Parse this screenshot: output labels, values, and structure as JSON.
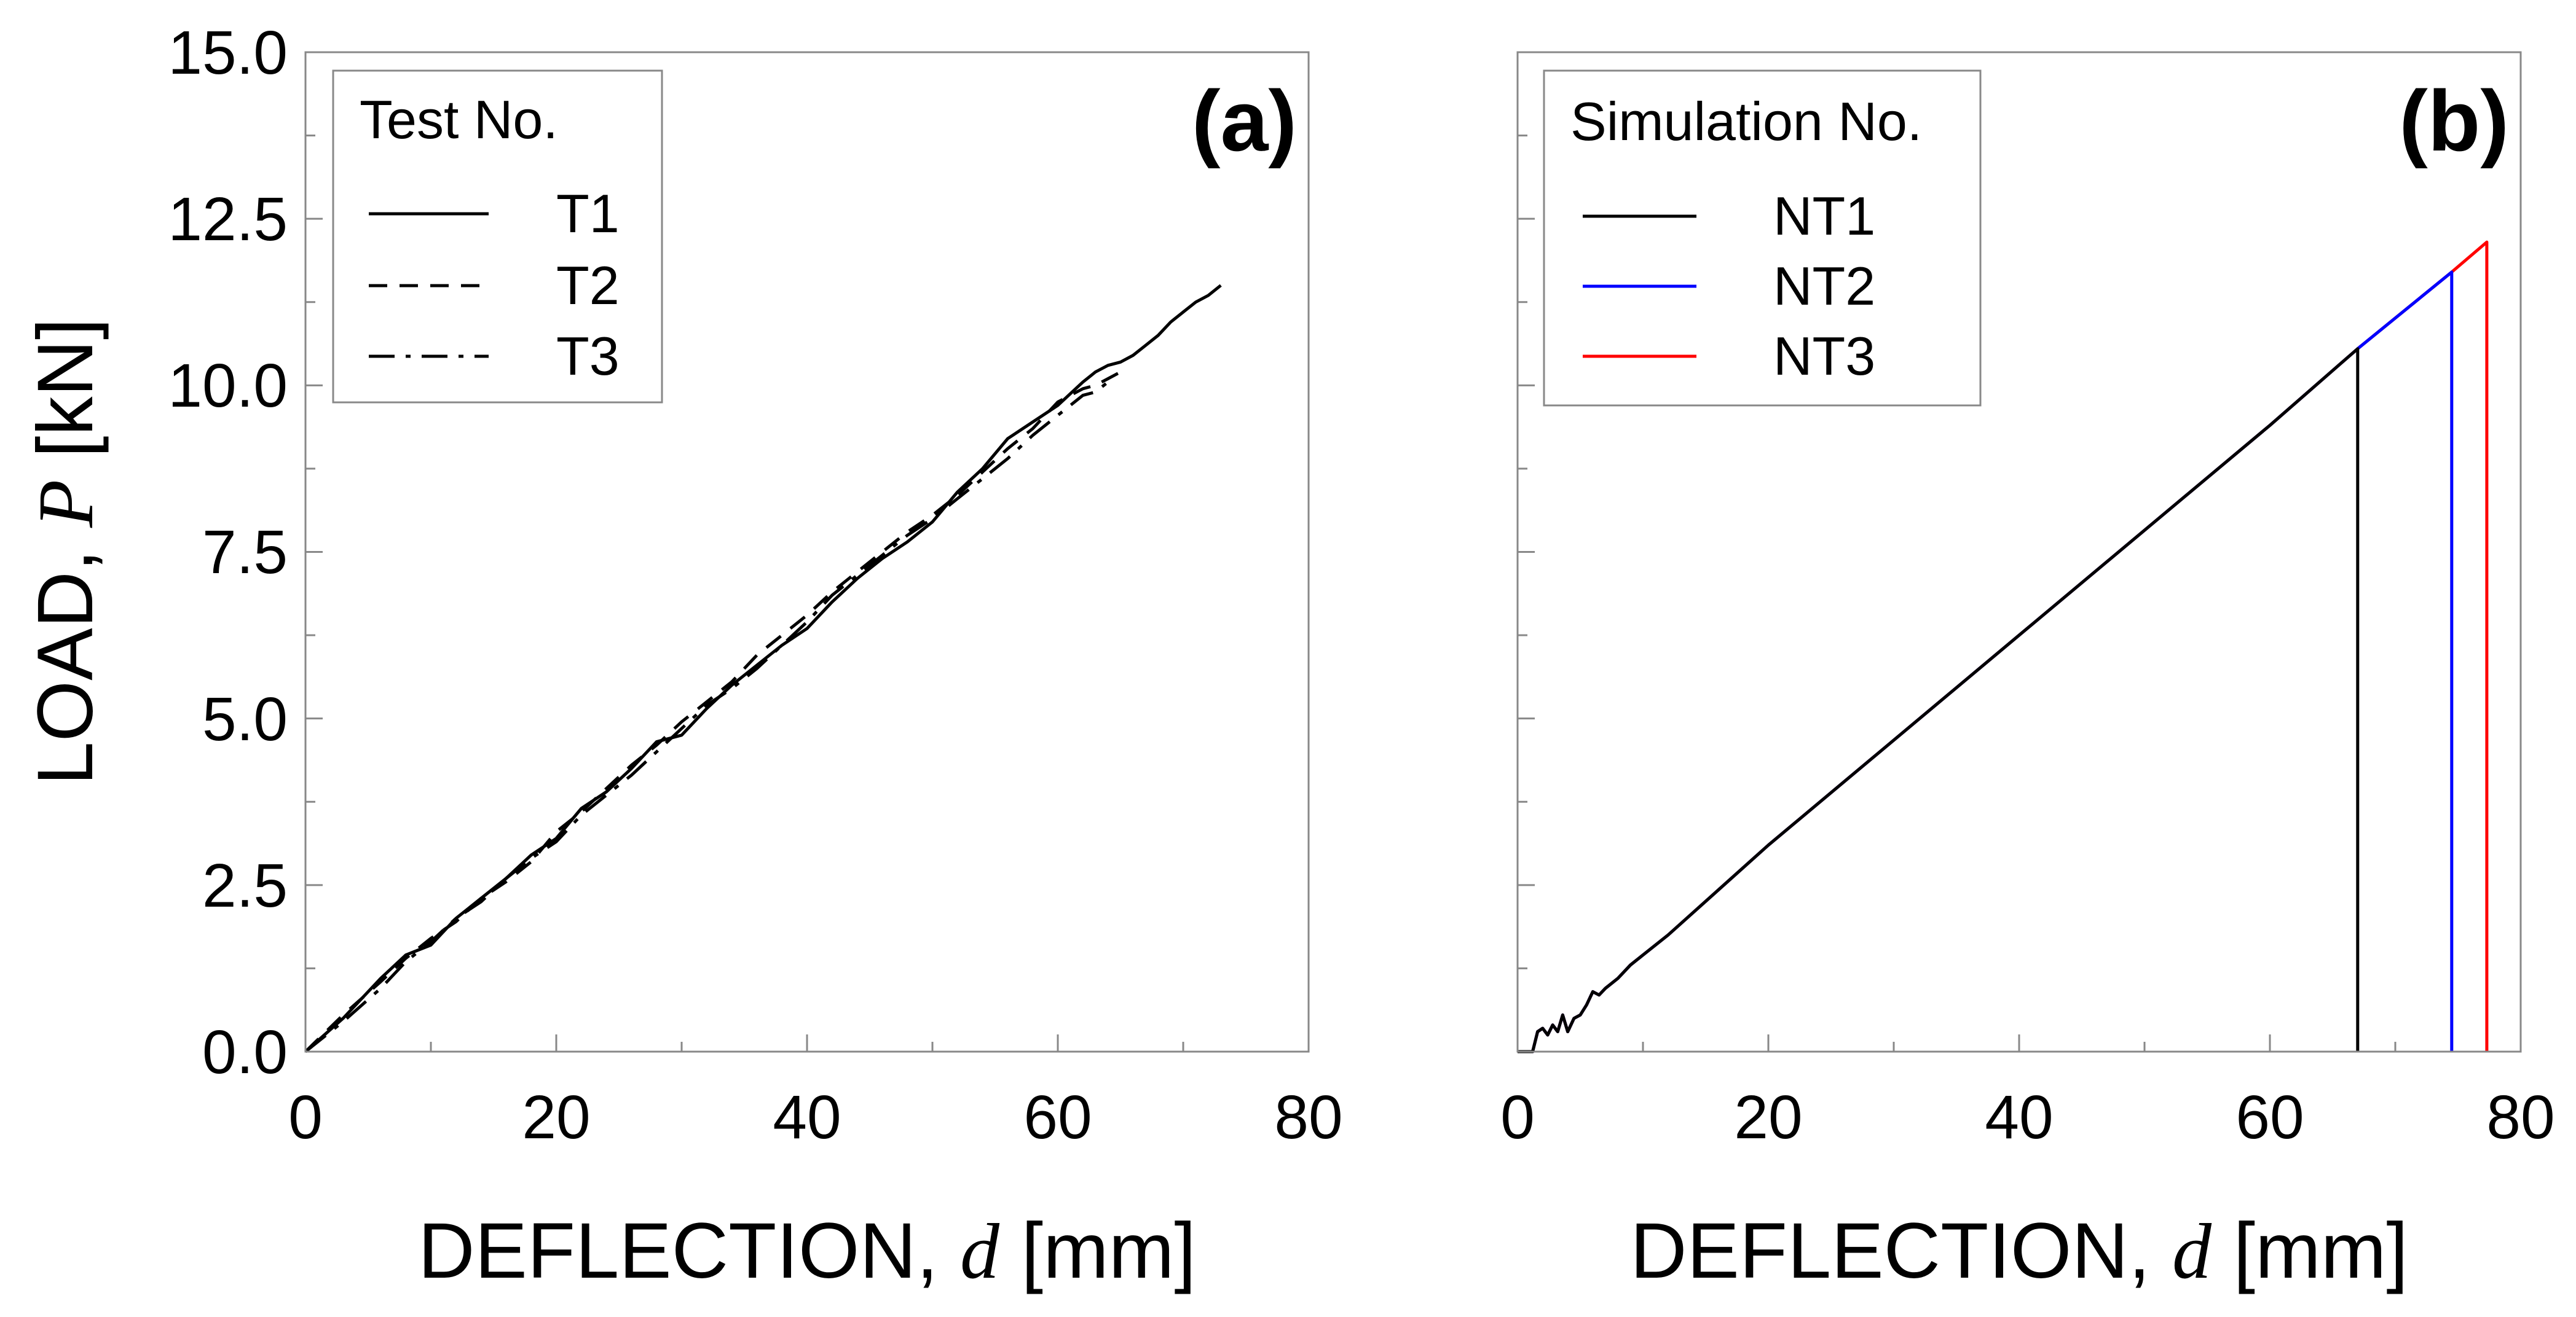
{
  "chart_data": [
    {
      "panel": "(a)",
      "type": "line",
      "xlabel_prefix": "DEFLECTION,",
      "xlabel_var": "d",
      "xlabel_unit": "[mm]",
      "ylabel_prefix": "LOAD,",
      "ylabel_var": "P",
      "ylabel_unit": "[kN]",
      "xlim": [
        0,
        80
      ],
      "ylim": [
        0,
        15
      ],
      "xticks": [
        0,
        20,
        40,
        60,
        80
      ],
      "yticks": [
        0.0,
        2.5,
        5.0,
        7.5,
        10.0,
        12.5,
        15.0
      ],
      "xtick_labels": [
        "0",
        "20",
        "40",
        "60",
        "80"
      ],
      "ytick_labels": [
        "0.0",
        "2.5",
        "5.0",
        "7.5",
        "10.0",
        "12.5",
        "15.0"
      ],
      "legend_title": "Test No.",
      "legend_position": "top-left",
      "series": [
        {
          "name": "T1",
          "color": "#000000",
          "dash": "solid",
          "x": [
            0,
            3,
            6,
            8,
            10,
            12,
            14,
            16,
            18,
            20,
            22,
            24,
            26,
            28,
            30,
            32,
            34,
            36,
            38,
            40,
            42,
            44,
            46,
            48,
            50,
            52,
            54,
            56,
            58,
            60,
            62,
            63,
            64,
            65,
            66,
            67,
            68,
            69,
            70,
            71,
            72,
            73
          ],
          "y": [
            0,
            0.5,
            1.1,
            1.45,
            1.6,
            2.0,
            2.3,
            2.6,
            2.95,
            3.2,
            3.65,
            3.9,
            4.25,
            4.65,
            4.75,
            5.15,
            5.5,
            5.8,
            6.1,
            6.35,
            6.75,
            7.1,
            7.4,
            7.65,
            7.95,
            8.4,
            8.75,
            9.2,
            9.45,
            9.7,
            10.05,
            10.2,
            10.3,
            10.35,
            10.45,
            10.6,
            10.75,
            10.95,
            11.1,
            11.25,
            11.35,
            11.5
          ]
        },
        {
          "name": "T2",
          "color": "#000000",
          "dash": "dashed",
          "x": [
            0,
            3,
            6,
            8,
            10,
            12,
            14,
            16,
            18,
            20,
            22,
            24,
            26,
            28,
            30,
            32,
            34,
            36,
            38,
            40,
            42,
            44,
            46,
            48,
            50,
            52,
            54,
            56,
            58,
            60,
            62,
            63,
            64,
            65
          ],
          "y": [
            0,
            0.55,
            1.05,
            1.4,
            1.7,
            1.95,
            2.3,
            2.55,
            2.85,
            3.3,
            3.6,
            3.95,
            4.3,
            4.6,
            4.95,
            5.25,
            5.55,
            5.95,
            6.25,
            6.55,
            6.9,
            7.2,
            7.5,
            7.8,
            8.05,
            8.35,
            8.7,
            9.05,
            9.35,
            9.75,
            9.95,
            10.0,
            10.1,
            10.2
          ]
        },
        {
          "name": "T3",
          "color": "#000000",
          "dash": "dashdot",
          "x": [
            0,
            3,
            6,
            8,
            10,
            12,
            14,
            16,
            18,
            20,
            22,
            24,
            26,
            28,
            30,
            32,
            34,
            36,
            38,
            40,
            42,
            44,
            46,
            48,
            50,
            52,
            54,
            56,
            58,
            60,
            62,
            63,
            64
          ],
          "y": [
            0,
            0.45,
            0.95,
            1.35,
            1.65,
            2.0,
            2.25,
            2.6,
            2.9,
            3.15,
            3.55,
            3.85,
            4.15,
            4.5,
            4.85,
            5.2,
            5.45,
            5.75,
            6.1,
            6.45,
            6.85,
            7.15,
            7.45,
            7.75,
            8.0,
            8.3,
            8.6,
            8.9,
            9.25,
            9.55,
            9.85,
            9.9,
            10.05
          ]
        }
      ]
    },
    {
      "panel": "(b)",
      "type": "line",
      "xlabel_prefix": "DEFLECTION,",
      "xlabel_var": "d",
      "xlabel_unit": "[mm]",
      "xlim": [
        0,
        80
      ],
      "ylim": [
        0,
        15
      ],
      "xticks": [
        0,
        20,
        40,
        60,
        80
      ],
      "yticks": [
        0.0,
        2.5,
        5.0,
        7.5,
        10.0,
        12.5,
        15.0
      ],
      "xtick_labels": [
        "0",
        "20",
        "40",
        "60",
        "80"
      ],
      "legend_title": "Simulation No.",
      "legend_position": "top-left",
      "series": [
        {
          "name": "NT3",
          "color": "#ff0000",
          "dash": "solid",
          "x": [
            0,
            0.5,
            1.2,
            1.6,
            2.0,
            2.4,
            2.8,
            3.2,
            3.6,
            4.0,
            4.5,
            5.0,
            5.5,
            6.0,
            6.5,
            7.0,
            8.0,
            9.0,
            10.0,
            12.0,
            20,
            40,
            60,
            67,
            74.5,
            77.3,
            77.3
          ],
          "y": [
            0,
            0,
            0,
            0.3,
            0.35,
            0.25,
            0.4,
            0.3,
            0.55,
            0.3,
            0.5,
            0.55,
            0.7,
            0.9,
            0.85,
            0.95,
            1.1,
            1.3,
            1.45,
            1.75,
            3.1,
            6.25,
            9.4,
            10.55,
            11.7,
            12.15,
            0
          ]
        },
        {
          "name": "NT2",
          "color": "#0000ff",
          "dash": "solid",
          "x": [
            0,
            0.5,
            1.2,
            1.6,
            2.0,
            2.4,
            2.8,
            3.2,
            3.6,
            4.0,
            4.5,
            5.0,
            5.5,
            6.0,
            6.5,
            7.0,
            8.0,
            9.0,
            10.0,
            12.0,
            20,
            40,
            60,
            67,
            74.5,
            74.5
          ],
          "y": [
            0,
            0,
            0,
            0.3,
            0.35,
            0.25,
            0.4,
            0.3,
            0.55,
            0.3,
            0.5,
            0.55,
            0.7,
            0.9,
            0.85,
            0.95,
            1.1,
            1.3,
            1.45,
            1.75,
            3.1,
            6.25,
            9.4,
            10.55,
            11.7,
            0
          ]
        },
        {
          "name": "NT1",
          "color": "#000000",
          "dash": "solid",
          "x": [
            0,
            0.5,
            1.2,
            1.6,
            2.0,
            2.4,
            2.8,
            3.2,
            3.6,
            4.0,
            4.5,
            5.0,
            5.5,
            6.0,
            6.5,
            7.0,
            8.0,
            9.0,
            10.0,
            12.0,
            20,
            40,
            60,
            67,
            67
          ],
          "y": [
            0,
            0,
            0,
            0.3,
            0.35,
            0.25,
            0.4,
            0.3,
            0.55,
            0.3,
            0.5,
            0.55,
            0.7,
            0.9,
            0.85,
            0.95,
            1.1,
            1.3,
            1.45,
            1.75,
            3.1,
            6.25,
            9.4,
            10.55,
            0
          ]
        }
      ]
    }
  ]
}
